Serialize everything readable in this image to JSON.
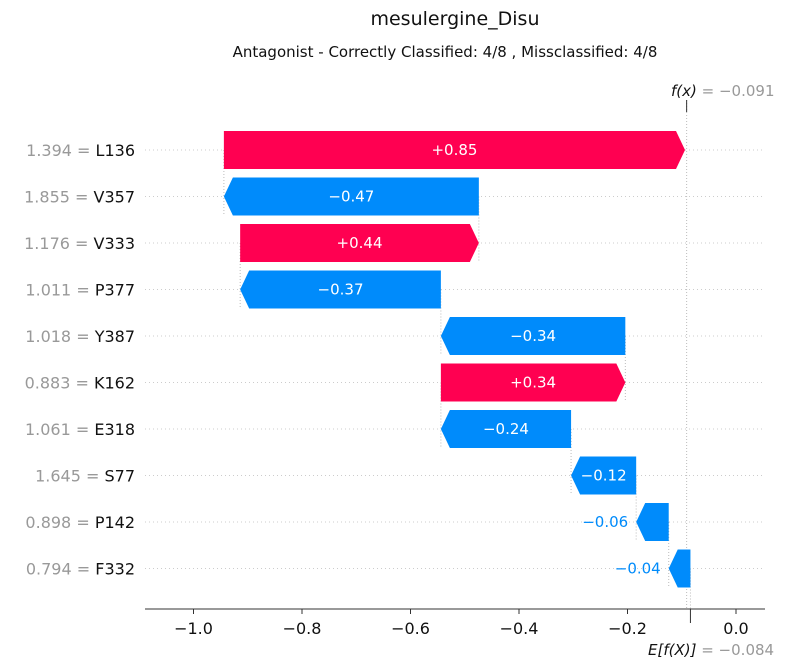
{
  "chart_data": {
    "type": "waterfall",
    "title": "mesulergine_Disu",
    "subtitle": "Antagonist - Correctly Classified: 4/8 , Missclassified: 4/8",
    "fx_label": "f(x)",
    "fx_value": "−0.091",
    "ex_label": "E[f(X)]",
    "ex_value": "−0.084",
    "fx": -0.091,
    "base_value": -0.084,
    "xlim": [
      -1.09,
      0.05
    ],
    "xticks": [
      -1.0,
      -0.8,
      -0.6,
      -0.4,
      -0.2,
      0.0
    ],
    "xtick_labels": [
      "−1.0",
      "−0.8",
      "−0.6",
      "−0.4",
      "−0.2",
      "0.0"
    ],
    "features": [
      {
        "value_text": "1.394 =",
        "name": "L136",
        "contribution": 0.85,
        "label": "+0.85"
      },
      {
        "value_text": "1.855 =",
        "name": "V357",
        "contribution": -0.47,
        "label": "−0.47"
      },
      {
        "value_text": "1.176 =",
        "name": "V333",
        "contribution": 0.44,
        "label": "+0.44"
      },
      {
        "value_text": "1.011 =",
        "name": "P377",
        "contribution": -0.37,
        "label": "−0.37"
      },
      {
        "value_text": "1.018 =",
        "name": "Y387",
        "contribution": -0.34,
        "label": "−0.34"
      },
      {
        "value_text": "0.883 =",
        "name": "K162",
        "contribution": 0.34,
        "label": "+0.34"
      },
      {
        "value_text": "1.061 =",
        "name": "E318",
        "contribution": -0.24,
        "label": "−0.24"
      },
      {
        "value_text": "1.645 =",
        "name": "S77",
        "contribution": -0.12,
        "label": "−0.12"
      },
      {
        "value_text": "0.898 =",
        "name": "P142",
        "contribution": -0.06,
        "label": "−0.06"
      },
      {
        "value_text": "0.794 =",
        "name": "F332",
        "contribution": -0.04,
        "label": "−0.04"
      }
    ],
    "colors": {
      "positive": "#ff0051",
      "negative": "#008bfb",
      "muted": "#999999"
    }
  }
}
